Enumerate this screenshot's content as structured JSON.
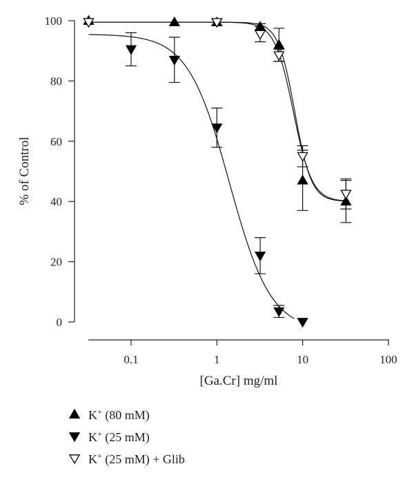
{
  "chart_data": {
    "type": "scatter",
    "title": "",
    "xlabel": "[Ga.Cr] mg/ml",
    "ylabel": "% of Control",
    "x_scale": "log",
    "xlim": [
      0.03,
      100
    ],
    "ylim": [
      0,
      100
    ],
    "x_ticks": [
      0.1,
      1,
      10,
      100
    ],
    "x_tick_labels": [
      "0.1",
      "1",
      "10",
      "100"
    ],
    "y_ticks": [
      0,
      20,
      40,
      60,
      80,
      100
    ],
    "y_tick_labels": [
      "0",
      "20",
      "40",
      "60",
      "80",
      "100"
    ],
    "grid": false,
    "legend_position": "bottom-left",
    "series": [
      {
        "label_main": "K",
        "label_sup": "+",
        "label_rest": " (80 mM)",
        "marker": "triangle-up-filled",
        "color": "#000000",
        "points": [
          {
            "x": 0.032,
            "y": 100,
            "err": 0
          },
          {
            "x": 0.32,
            "y": 99.5,
            "err": 0
          },
          {
            "x": 1,
            "y": 99.5,
            "err": 0
          },
          {
            "x": 3.2,
            "y": 98,
            "err": 1
          },
          {
            "x": 5.3,
            "y": 92,
            "err": 5.5
          },
          {
            "x": 10,
            "y": 47,
            "err": 10
          },
          {
            "x": 32,
            "y": 40,
            "err": 7
          }
        ],
        "fit": {
          "top": 99.5,
          "bottom": 40,
          "ec50": 8.1,
          "hill": 4.5
        }
      },
      {
        "label_main": "K",
        "label_sup": "+",
        "label_rest": " (25 mM)",
        "marker": "triangle-down-filled",
        "color": "#000000",
        "points": [
          {
            "x": 0.1,
            "y": 90.5,
            "err": 5.5
          },
          {
            "x": 0.32,
            "y": 87,
            "err": 7.5
          },
          {
            "x": 1,
            "y": 64.5,
            "err": 6.5
          },
          {
            "x": 3.2,
            "y": 22,
            "err": 6
          },
          {
            "x": 5.3,
            "y": 3.5,
            "err": 2
          },
          {
            "x": 10,
            "y": 0,
            "err": 0
          }
        ],
        "fit": {
          "top": 95.5,
          "bottom": -3,
          "ec50": 1.4,
          "hill": 1.8
        }
      },
      {
        "label_main": "K",
        "label_sup": "+",
        "label_rest": " (25 mM) + Glib",
        "marker": "triangle-down-open",
        "color": "#000000",
        "points": [
          {
            "x": 0.032,
            "y": 99.5,
            "err": 0
          },
          {
            "x": 1,
            "y": 99.5,
            "err": 1
          },
          {
            "x": 3.2,
            "y": 95.5,
            "err": 2.5
          },
          {
            "x": 5.3,
            "y": 88.5,
            "err": 2
          },
          {
            "x": 10,
            "y": 55,
            "err": 3.5
          },
          {
            "x": 32,
            "y": 42.5,
            "err": 5
          }
        ],
        "fit": {
          "top": 99.5,
          "bottom": 40,
          "ec50": 7.8,
          "hill": 4.0
        }
      }
    ]
  }
}
